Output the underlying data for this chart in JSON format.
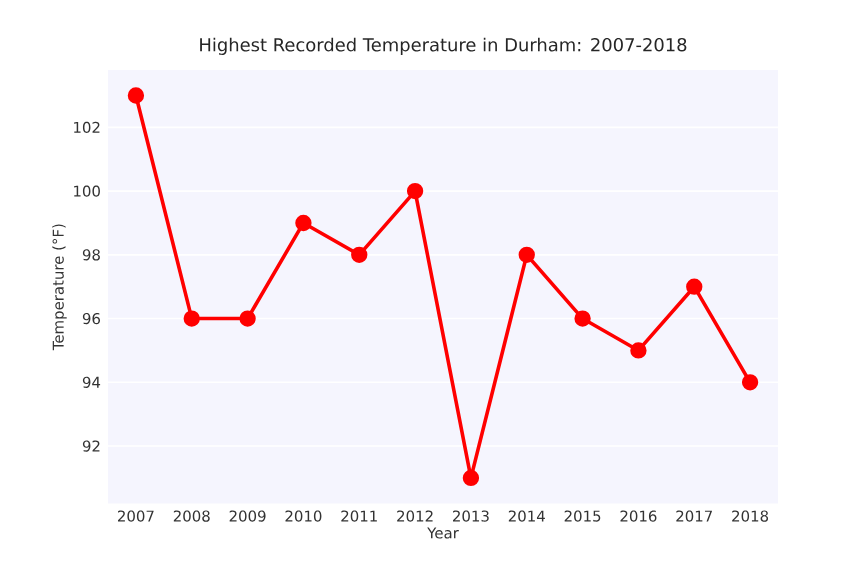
{
  "chart_data": {
    "type": "line",
    "title": "Highest Recorded Temperature in Durham: 2007-2018",
    "xlabel": "Year",
    "ylabel": "Temperature (°F)",
    "categories": [
      "2007",
      "2008",
      "2009",
      "2010",
      "2011",
      "2012",
      "2013",
      "2014",
      "2015",
      "2016",
      "2017",
      "2018"
    ],
    "series": [
      {
        "color": "#ff0000",
        "values": [
          103,
          96,
          96,
          99,
          98,
          100,
          91,
          98,
          96,
          95,
          97,
          94
        ]
      }
    ],
    "ylim": [
      90.2,
      103.8
    ],
    "yticks": [
      92,
      94,
      96,
      98,
      100,
      102
    ],
    "grid": "y",
    "marker": "circle",
    "line_style": "solid"
  }
}
